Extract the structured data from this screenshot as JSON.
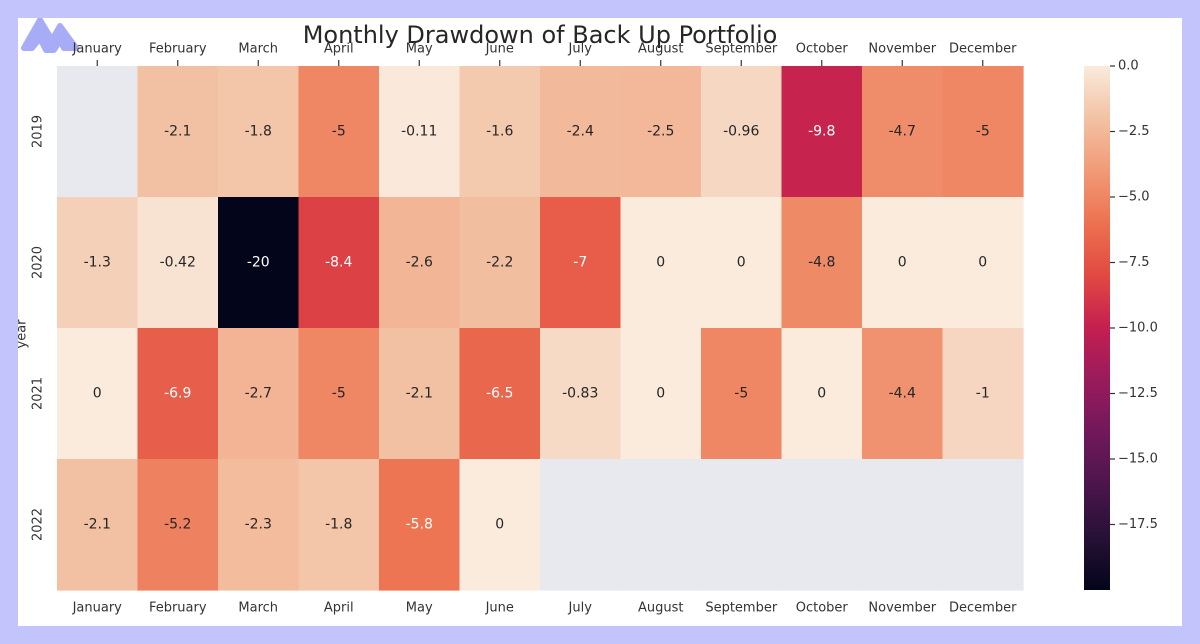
{
  "chart_data": {
    "type": "heatmap",
    "title": "Monthly Drawdown of Back Up Portfolio",
    "xlabel": "",
    "ylabel": "year",
    "x_tick_position": "top and bottom",
    "columns": [
      "January",
      "February",
      "March",
      "April",
      "May",
      "June",
      "July",
      "August",
      "September",
      "October",
      "November",
      "December"
    ],
    "rows": [
      "2019",
      "2020",
      "2021",
      "2022"
    ],
    "values": [
      [
        null,
        -2.1,
        -1.8,
        -5,
        -0.11,
        -1.6,
        -2.4,
        -2.5,
        -0.96,
        -9.8,
        -4.7,
        -5
      ],
      [
        -1.3,
        -0.42,
        -20,
        -8.4,
        -2.6,
        -2.2,
        -7,
        0,
        0,
        -4.8,
        0,
        0
      ],
      [
        0,
        -6.9,
        -2.7,
        -5,
        -2.1,
        -6.5,
        -0.83,
        0,
        -5,
        0,
        -4.4,
        -1
      ],
      [
        -2.1,
        -5.2,
        -2.3,
        -1.8,
        -5.8,
        0,
        null,
        null,
        null,
        null,
        null,
        null
      ]
    ],
    "cell_labels": [
      [
        "",
        "-2.1",
        "-1.8",
        "-5",
        "-0.11",
        "-1.6",
        "-2.4",
        "-2.5",
        "-0.96",
        "-9.8",
        "-4.7",
        "-5"
      ],
      [
        "-1.3",
        "-0.42",
        "-20",
        "-8.4",
        "-2.6",
        "-2.2",
        "-7",
        "0",
        "0",
        "-4.8",
        "0",
        "0"
      ],
      [
        "0",
        "-6.9",
        "-2.7",
        "-5",
        "-2.1",
        "-6.5",
        "-0.83",
        "0",
        "-5",
        "0",
        "-4.4",
        "-1"
      ],
      [
        "-2.1",
        "-5.2",
        "-2.3",
        "-1.8",
        "-5.8",
        "0",
        "",
        "",
        "",
        "",
        "",
        ""
      ]
    ],
    "colorbar": {
      "colormap": "rocket",
      "vmin": -20,
      "vmax": 0,
      "ticks": [
        0,
        -2.5,
        -5,
        -7.5,
        -10,
        -12.5,
        -15,
        -17.5
      ],
      "tick_labels": [
        "0.0",
        "−2.5",
        "−5.0",
        "−7.5",
        "−10.0",
        "−12.5",
        "−15.0",
        "−17.5"
      ]
    },
    "missing_color": "#e8e8ef"
  },
  "logo": {
    "icon": "m-logo-icon",
    "color": "#a8acf6"
  }
}
